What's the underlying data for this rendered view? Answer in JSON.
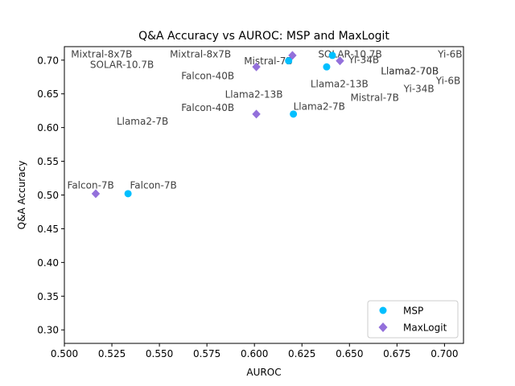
{
  "chart_data": {
    "type": "scatter",
    "title": "Q&A Accuracy vs AUROC: MSP and MaxLogit",
    "xlabel": "AUROC",
    "ylabel": "Q&A Accuracy",
    "xlim": [
      0.5,
      0.71
    ],
    "ylim": [
      0.28,
      0.72
    ],
    "xticks": [
      0.5,
      0.525,
      0.55,
      0.575,
      0.6,
      0.625,
      0.65,
      0.675,
      0.7
    ],
    "xtick_labels": [
      "0.500",
      "0.525",
      "0.550",
      "0.575",
      "0.600",
      "0.625",
      "0.650",
      "0.675",
      "0.700"
    ],
    "yticks": [
      0.3,
      0.35,
      0.4,
      0.45,
      0.5,
      0.55,
      0.6,
      0.65,
      0.7
    ],
    "ytick_labels": [
      "0.30",
      "0.35",
      "0.40",
      "0.45",
      "0.50",
      "0.55",
      "0.60",
      "0.65",
      "0.70"
    ],
    "grid": false,
    "legend_position": "lower right",
    "series": [
      {
        "name": "MSP",
        "color": "#00bfff",
        "marker": "circle",
        "points": [
          {
            "label": "Falcon-7B",
            "x": 0.5335,
            "y": 0.502
          },
          {
            "label": "Llama2-7B",
            "x": 0.6205,
            "y": 0.62
          },
          {
            "label": "Mistral-7B",
            "x": 0.618,
            "y": 0.699
          },
          {
            "label": "SOLAR-10.7B",
            "x": 0.641,
            "y": 0.707
          },
          {
            "label": "Yi-34B",
            "x": 0.638,
            "y": 0.69
          }
        ]
      },
      {
        "name": "MaxLogit",
        "color": "#9370db",
        "marker": "diamond",
        "points": [
          {
            "label": "Falcon-7B",
            "x": 0.5165,
            "y": 0.502
          },
          {
            "label": "Falcon-40B",
            "x": 0.601,
            "y": 0.62
          },
          {
            "label": "Mistral-7B",
            "x": 0.601,
            "y": 0.69
          },
          {
            "label": "Mixtral-8x7B",
            "x": 0.62,
            "y": 0.707
          },
          {
            "label": "Yi-34B",
            "x": 0.645,
            "y": 0.699
          }
        ]
      }
    ],
    "annotations": [
      {
        "text": "Mixtral-8x7B",
        "x": 0.5035,
        "y": 0.704,
        "color": "#404040"
      },
      {
        "text": "SOLAR-10.7B",
        "x": 0.5135,
        "y": 0.6885,
        "color": "#404040"
      },
      {
        "text": "Mixtral-8x7B",
        "x": 0.5555,
        "y": 0.704,
        "color": "#404040"
      },
      {
        "text": "Falcon-40B",
        "x": 0.5615,
        "y": 0.6715,
        "color": "#404040"
      },
      {
        "text": "Mistral-7B",
        "x": 0.5945,
        "y": 0.6935,
        "color": "#404040"
      },
      {
        "text": "SOLAR-10.7B",
        "x": 0.6335,
        "y": 0.704,
        "color": "#404040"
      },
      {
        "text": "Yi-34B",
        "x": 0.6495,
        "y": 0.6955,
        "color": "#404040"
      },
      {
        "text": "Yi-6B",
        "x": 0.6965,
        "y": 0.704,
        "color": "#404040"
      },
      {
        "text": "Llama2-70B",
        "x": 0.6665,
        "y": 0.679,
        "color": "#111111"
      },
      {
        "text": "Llama2-70B",
        "x": 0.6665,
        "y": 0.679,
        "color": "#404040"
      },
      {
        "text": "Yi-6B",
        "x": 0.6955,
        "y": 0.6645,
        "color": "#404040"
      },
      {
        "text": "Llama2-13B",
        "x": 0.6295,
        "y": 0.6595,
        "color": "#404040"
      },
      {
        "text": "Yi-34B",
        "x": 0.6785,
        "y": 0.6525,
        "color": "#404040"
      },
      {
        "text": "Llama2-13B",
        "x": 0.5845,
        "y": 0.6445,
        "color": "#404040"
      },
      {
        "text": "Mistral-7B",
        "x": 0.6505,
        "y": 0.6395,
        "color": "#404040"
      },
      {
        "text": "Falcon-40B",
        "x": 0.5615,
        "y": 0.6245,
        "color": "#404040"
      },
      {
        "text": "Llama2-7B",
        "x": 0.6205,
        "y": 0.6265,
        "color": "#404040"
      },
      {
        "text": "Llama2-7B",
        "x": 0.5275,
        "y": 0.6045,
        "color": "#404040"
      },
      {
        "text": "Falcon-7B",
        "x": 0.5015,
        "y": 0.5095,
        "color": "#404040"
      },
      {
        "text": "Falcon-7B",
        "x": 0.5345,
        "y": 0.5095,
        "color": "#404040"
      }
    ]
  }
}
